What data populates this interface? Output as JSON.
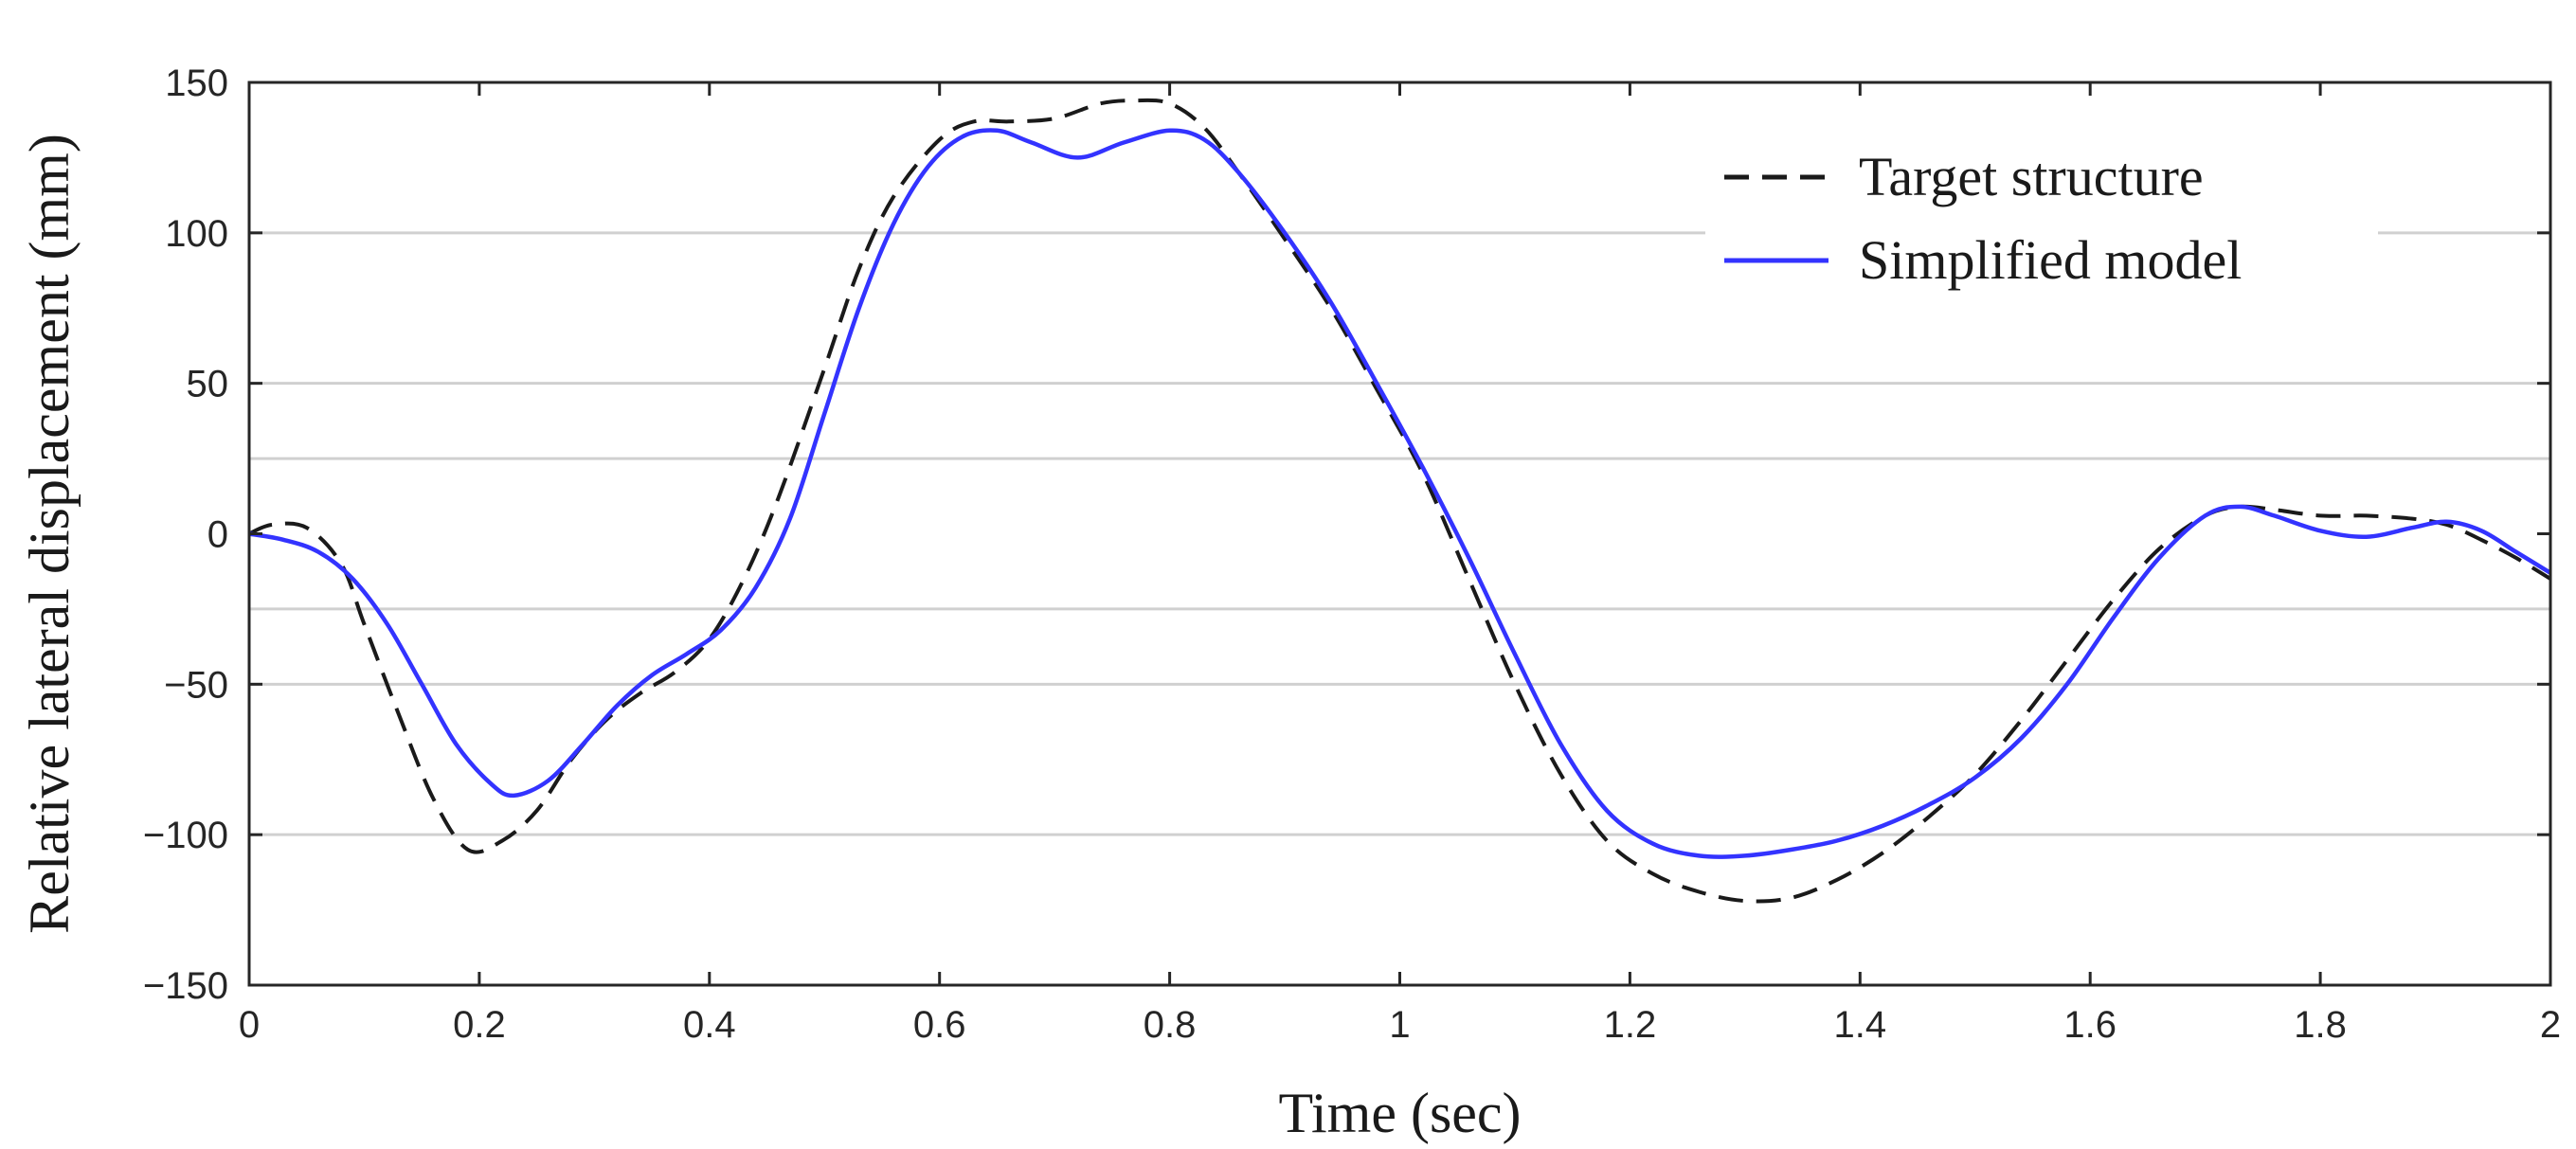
{
  "chart_data": {
    "type": "line",
    "title": "",
    "xlabel": "Time (sec)",
    "ylabel": "Relative lateral displacement (mm)",
    "xlim": [
      0,
      2
    ],
    "ylim": [
      -150,
      150
    ],
    "xticks": [
      0,
      0.2,
      0.4,
      0.6,
      0.8,
      1,
      1.2,
      1.4,
      1.6,
      1.8,
      2
    ],
    "xtick_labels": [
      "0",
      "0.2",
      "0.4",
      "0.6",
      "0.8",
      "1",
      "1.2",
      "1.4",
      "1.6",
      "1.8",
      "2"
    ],
    "yticks": [
      150,
      100,
      50,
      0,
      -50,
      -100,
      -150
    ],
    "ytick_labels": [
      "150",
      "100",
      "50",
      "0",
      "−50",
      "−100",
      "−150"
    ],
    "grid_y_values": [
      100,
      50,
      25,
      -25,
      -50,
      -100
    ],
    "legend_position": "top-right",
    "series": [
      {
        "name": "Target structure",
        "style": "dashed",
        "color": "#1a1a1a",
        "x": [
          0,
          0.02,
          0.05,
          0.08,
          0.1,
          0.13,
          0.16,
          0.19,
          0.22,
          0.25,
          0.28,
          0.31,
          0.34,
          0.37,
          0.4,
          0.43,
          0.46,
          0.5,
          0.53,
          0.56,
          0.6,
          0.63,
          0.66,
          0.7,
          0.74,
          0.77,
          0.8,
          0.83,
          0.86,
          0.9,
          0.94,
          0.98,
          1.02,
          1.06,
          1.1,
          1.14,
          1.18,
          1.22,
          1.26,
          1.3,
          1.34,
          1.38,
          1.42,
          1.46,
          1.5,
          1.54,
          1.58,
          1.62,
          1.66,
          1.7,
          1.73,
          1.76,
          1.8,
          1.84,
          1.88,
          1.91,
          1.94,
          1.97,
          2.0
        ],
        "values": [
          0,
          3,
          2,
          -10,
          -30,
          -60,
          -88,
          -105,
          -102,
          -92,
          -75,
          -62,
          -53,
          -46,
          -35,
          -15,
          12,
          55,
          88,
          112,
          131,
          137,
          137,
          138,
          143,
          144,
          143,
          135,
          120,
          98,
          75,
          48,
          20,
          -15,
          -50,
          -80,
          -102,
          -113,
          -119,
          -122,
          -121,
          -115,
          -106,
          -94,
          -80,
          -62,
          -42,
          -22,
          -5,
          6,
          9,
          8,
          6,
          6,
          5,
          3,
          -2,
          -8,
          -15
        ]
      },
      {
        "name": "Simplified model",
        "style": "solid",
        "color": "#3333ff",
        "x": [
          0,
          0.03,
          0.06,
          0.09,
          0.12,
          0.15,
          0.18,
          0.21,
          0.23,
          0.26,
          0.29,
          0.32,
          0.35,
          0.38,
          0.41,
          0.44,
          0.47,
          0.5,
          0.53,
          0.56,
          0.59,
          0.62,
          0.65,
          0.68,
          0.72,
          0.76,
          0.8,
          0.83,
          0.86,
          0.9,
          0.94,
          0.98,
          1.02,
          1.06,
          1.1,
          1.14,
          1.18,
          1.22,
          1.26,
          1.3,
          1.34,
          1.38,
          1.42,
          1.46,
          1.5,
          1.54,
          1.58,
          1.62,
          1.66,
          1.7,
          1.73,
          1.76,
          1.8,
          1.84,
          1.88,
          1.91,
          1.94,
          1.97,
          2.0
        ],
        "values": [
          0,
          -2,
          -6,
          -15,
          -30,
          -50,
          -70,
          -83,
          -87,
          -82,
          -70,
          -57,
          -47,
          -40,
          -32,
          -18,
          5,
          40,
          75,
          103,
          122,
          132,
          134,
          130,
          125,
          130,
          134,
          131,
          120,
          100,
          77,
          50,
          22,
          -8,
          -40,
          -70,
          -92,
          -103,
          -107,
          -107,
          -105,
          -102,
          -97,
          -90,
          -81,
          -68,
          -50,
          -28,
          -8,
          6,
          9,
          6,
          1,
          -1,
          2,
          4,
          1,
          -6,
          -13
        ]
      }
    ]
  }
}
